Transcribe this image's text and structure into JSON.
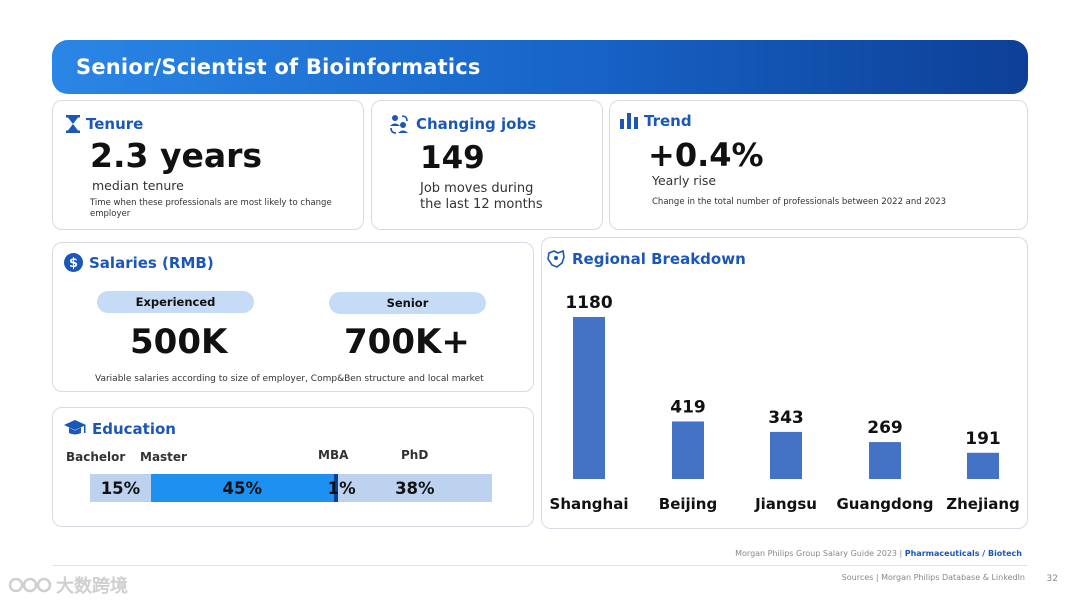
{
  "header": {
    "title": "Senior/Scientist of Bioinformatics"
  },
  "tenure": {
    "title": "Tenure",
    "value": "2.3 years",
    "caption": "median tenure",
    "note": "Time when these professionals are most likely to  change employer",
    "icon": "hourglass-icon"
  },
  "jobs": {
    "title": "Changing jobs",
    "value": "149",
    "caption_line1": "Job moves during",
    "caption_line2": "the last 12 months",
    "icon": "people-swap-icon"
  },
  "trend": {
    "title": "Trend",
    "value": "+0.4%",
    "caption": "Yearly rise",
    "note": "Change in the total number of professionals between 2022 and 2023",
    "icon": "bar-chart-icon"
  },
  "salaries": {
    "title": "Salaries (RMB)",
    "icon": "dollar-icon",
    "levels": [
      {
        "label": "Experienced",
        "value": "500K"
      },
      {
        "label": "Senior",
        "value": "700K+"
      }
    ],
    "note": "Variable salaries according to size of employer, Comp&Ben structure and local market"
  },
  "education": {
    "title": "Education",
    "icon": "graduation-cap-icon",
    "segments": [
      {
        "label": "Bachelor",
        "value": "15%",
        "share": 15,
        "color": "#bcd2ef"
      },
      {
        "label": "Master",
        "value": "45%",
        "share": 45,
        "color": "#1e90f0"
      },
      {
        "label": "MBA",
        "value": "1%",
        "share": 1,
        "color": "#0a3f96"
      },
      {
        "label": "PhD",
        "value": "38%",
        "share": 38,
        "color": "#bcd2ef"
      }
    ]
  },
  "regional": {
    "title": "Regional Breakdown",
    "icon": "map-icon"
  },
  "chart_data": {
    "type": "bar",
    "categories": [
      "Shanghai",
      "Beijing",
      "Jiangsu",
      "Guangdong",
      "Zhejiang"
    ],
    "values": [
      1180,
      419,
      343,
      269,
      191
    ],
    "color": "#4472c4",
    "ylim": [
      0,
      1180
    ]
  },
  "footer": {
    "guide": "Morgan Philips Group Salary Guide 2023 | ",
    "sector": "Pharmaceuticals / Biotech",
    "sources": "Sources | Morgan Philips Database & LinkedIn",
    "page": "32"
  },
  "watermark": {
    "text": "大数跨境"
  }
}
